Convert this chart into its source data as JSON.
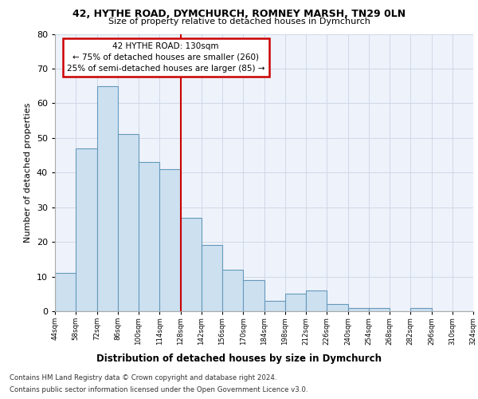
{
  "title_line1": "42, HYTHE ROAD, DYMCHURCH, ROMNEY MARSH, TN29 0LN",
  "title_line2": "Size of property relative to detached houses in Dymchurch",
  "xlabel": "Distribution of detached houses by size in Dymchurch",
  "ylabel": "Number of detached properties",
  "bar_values": [
    11,
    47,
    65,
    51,
    43,
    41,
    27,
    19,
    12,
    9,
    3,
    5,
    6,
    2,
    1,
    1,
    0,
    1,
    0,
    0
  ],
  "bin_labels": [
    "44sqm",
    "58sqm",
    "72sqm",
    "86sqm",
    "100sqm",
    "114sqm",
    "128sqm",
    "142sqm",
    "156sqm",
    "170sqm",
    "184sqm",
    "198sqm",
    "212sqm",
    "226sqm",
    "240sqm",
    "254sqm",
    "268sqm",
    "282sqm",
    "296sqm",
    "310sqm",
    "324sqm"
  ],
  "bar_color": "#cce0f0",
  "bar_edge_color": "#6699bb",
  "grid_color": "#d0d8e8",
  "bg_color": "#eef2fa",
  "red_line_x": 6,
  "annotation_line1": "42 HYTHE ROAD: 130sqm",
  "annotation_line2": "← 75% of detached houses are smaller (260)",
  "annotation_line3": "25% of semi-detached houses are larger (85) →",
  "annotation_box_color": "#ffffff",
  "annotation_box_edge_color": "#cc0000",
  "footer_line1": "Contains HM Land Registry data © Crown copyright and database right 2024.",
  "footer_line2": "Contains public sector information licensed under the Open Government Licence v3.0.",
  "ylim": [
    0,
    80
  ],
  "yticks": [
    0,
    10,
    20,
    30,
    40,
    50,
    60,
    70,
    80
  ]
}
